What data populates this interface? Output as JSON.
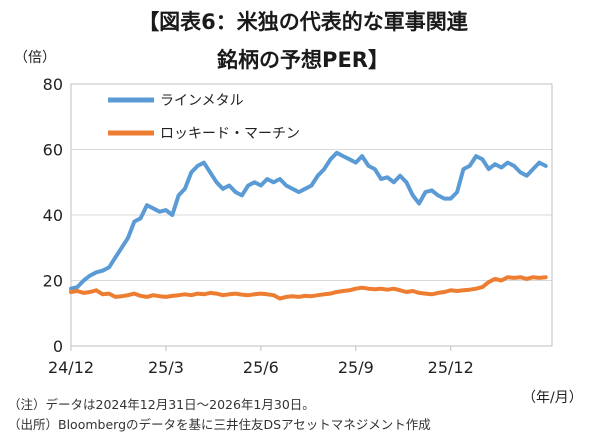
{
  "chart_data": {
    "type": "line",
    "title_line1": "【図表6：米独の代表的な軍事関連",
    "title_line2": "銘柄の予想PER】",
    "ylabel": "（倍）",
    "xlabel": "（年/月）",
    "ylim": [
      0,
      80
    ],
    "yticks": [
      0,
      20,
      40,
      60,
      80
    ],
    "xlim": [
      0,
      15.2
    ],
    "xticks": [
      {
        "pos": 0,
        "label": "24/12"
      },
      {
        "pos": 3,
        "label": "25/3"
      },
      {
        "pos": 6,
        "label": "25/6"
      },
      {
        "pos": 9,
        "label": "25/9"
      },
      {
        "pos": 12,
        "label": "25/12"
      }
    ],
    "grid": "horizontal",
    "legend_position": "top-left",
    "series": [
      {
        "name": "ラインメタル",
        "color": "#5b9bd5",
        "x": [
          0,
          0.2,
          0.4,
          0.6,
          0.8,
          1.0,
          1.2,
          1.4,
          1.6,
          1.8,
          2.0,
          2.2,
          2.4,
          2.6,
          2.8,
          3.0,
          3.2,
          3.4,
          3.6,
          3.8,
          4.0,
          4.2,
          4.4,
          4.6,
          4.8,
          5.0,
          5.2,
          5.4,
          5.6,
          5.8,
          6.0,
          6.2,
          6.4,
          6.6,
          6.8,
          7.0,
          7.2,
          7.4,
          7.6,
          7.8,
          8.0,
          8.2,
          8.4,
          8.6,
          8.8,
          9.0,
          9.2,
          9.4,
          9.6,
          9.8,
          10.0,
          10.2,
          10.4,
          10.6,
          10.8,
          11.0,
          11.2,
          11.4,
          11.6,
          11.8,
          12.0,
          12.2,
          12.4,
          12.6,
          12.8,
          13.0,
          13.2,
          13.4,
          13.6,
          13.8,
          14.0,
          14.2,
          14.4,
          14.6,
          14.8,
          15.0
        ],
        "values": [
          17.5,
          18,
          20,
          21.5,
          22.5,
          23,
          24,
          27,
          30,
          33,
          38,
          39,
          43,
          42,
          41,
          41.5,
          40,
          46,
          48,
          53,
          55,
          56,
          53,
          50,
          48,
          49,
          47,
          46,
          49,
          50,
          49,
          51,
          50,
          51,
          49,
          48,
          47,
          48,
          49,
          52,
          54,
          57,
          59,
          58,
          57,
          56,
          58,
          55,
          54,
          51,
          51.5,
          50,
          52,
          50,
          46,
          43.5,
          47,
          47.5,
          46,
          45,
          45,
          47,
          54,
          55,
          58,
          57,
          54,
          55.5,
          54.5,
          56,
          55,
          53,
          52,
          54,
          56,
          55
        ]
      },
      {
        "name": "ロッキード・マーチン",
        "color": "#ed7d31",
        "x": [
          0,
          0.2,
          0.4,
          0.6,
          0.8,
          1.0,
          1.2,
          1.4,
          1.6,
          1.8,
          2.0,
          2.2,
          2.4,
          2.6,
          2.8,
          3.0,
          3.2,
          3.4,
          3.6,
          3.8,
          4.0,
          4.2,
          4.4,
          4.6,
          4.8,
          5.0,
          5.2,
          5.4,
          5.6,
          5.8,
          6.0,
          6.2,
          6.4,
          6.6,
          6.8,
          7.0,
          7.2,
          7.4,
          7.6,
          7.8,
          8.0,
          8.2,
          8.4,
          8.6,
          8.8,
          9.0,
          9.2,
          9.4,
          9.6,
          9.8,
          10.0,
          10.2,
          10.4,
          10.6,
          10.8,
          11.0,
          11.2,
          11.4,
          11.6,
          11.8,
          12.0,
          12.2,
          12.4,
          12.6,
          12.8,
          13.0,
          13.2,
          13.4,
          13.6,
          13.8,
          14.0,
          14.2,
          14.4,
          14.6,
          14.8,
          15.0
        ],
        "values": [
          16.5,
          16.8,
          16.2,
          16.5,
          17.0,
          15.8,
          16.0,
          15.0,
          15.2,
          15.5,
          16.0,
          15.3,
          15.0,
          15.5,
          15.2,
          15.0,
          15.3,
          15.5,
          15.8,
          15.5,
          16.0,
          15.8,
          16.2,
          16.0,
          15.5,
          15.8,
          16.0,
          15.7,
          15.5,
          15.8,
          16.0,
          15.8,
          15.5,
          14.5,
          15.0,
          15.2,
          15.0,
          15.3,
          15.2,
          15.5,
          15.8,
          16.0,
          16.5,
          16.8,
          17.0,
          17.5,
          17.8,
          17.5,
          17.3,
          17.5,
          17.2,
          17.5,
          17.0,
          16.5,
          16.8,
          16.2,
          16.0,
          15.8,
          16.2,
          16.5,
          17.0,
          16.8,
          17.0,
          17.2,
          17.5,
          18.0,
          19.5,
          20.5,
          20.0,
          21.0,
          20.8,
          21.0,
          20.5,
          21.0,
          20.8,
          21.0
        ]
      }
    ]
  },
  "notes": {
    "line1": "（注）データは2024年12月31日～2026年1月30日。",
    "line2": "（出所）Bloombergのデータを基に三井住友DSアセットマネジメント作成"
  }
}
